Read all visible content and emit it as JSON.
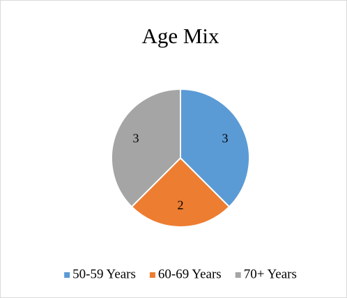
{
  "chart_data": {
    "type": "pie",
    "title": "Age Mix",
    "categories": [
      "50-59 Years",
      "60-69 Years",
      "70+ Years"
    ],
    "values": [
      3,
      2,
      3
    ],
    "colors": [
      "#5b9bd5",
      "#ed7d31",
      "#a5a5a5"
    ],
    "legend": "bottom"
  }
}
